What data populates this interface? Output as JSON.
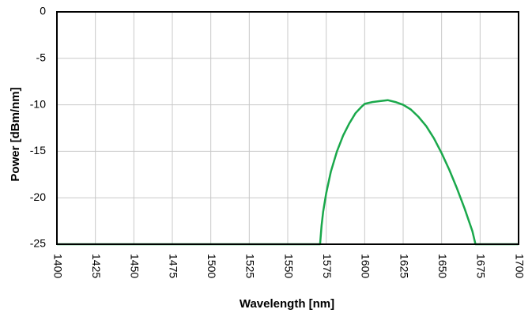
{
  "chart_data": {
    "type": "line",
    "title": "",
    "xlabel": "Wavelength [nm]",
    "ylabel": "Power [dBm/nm]",
    "xlim": [
      1400,
      1700
    ],
    "ylim": [
      -25,
      0
    ],
    "xticks": [
      1400,
      1425,
      1450,
      1475,
      1500,
      1525,
      1550,
      1575,
      1600,
      1625,
      1650,
      1675,
      1700
    ],
    "xtick_labels": [
      "1400",
      "1425",
      "1450",
      "1475",
      "1500",
      "1525",
      "1550",
      "1575",
      "1600",
      "1625",
      "1650",
      "1675",
      "1700"
    ],
    "yticks": [
      0,
      -5,
      -10,
      -15,
      -20,
      -25
    ],
    "ytick_labels": [
      "0",
      "-5",
      "-10",
      "-15",
      "-20",
      "-25"
    ],
    "grid": true,
    "series": [
      {
        "color": "#1aa84b",
        "x": [
          1400,
          1571,
          1572,
          1573,
          1575,
          1578,
          1582,
          1586,
          1590,
          1594,
          1598,
          1600,
          1605,
          1610,
          1615,
          1620,
          1625,
          1630,
          1635,
          1640,
          1645,
          1650,
          1655,
          1660,
          1665,
          1670,
          1672,
          1700
        ],
        "y": [
          -25,
          -25,
          -23,
          -21.5,
          -19.5,
          -17.2,
          -15.0,
          -13.3,
          -12.0,
          -10.9,
          -10.2,
          -9.9,
          -9.7,
          -9.6,
          -9.5,
          -9.7,
          -10.0,
          -10.5,
          -11.3,
          -12.3,
          -13.6,
          -15.2,
          -17.0,
          -19.0,
          -21.2,
          -23.6,
          -25,
          -25
        ]
      }
    ]
  }
}
